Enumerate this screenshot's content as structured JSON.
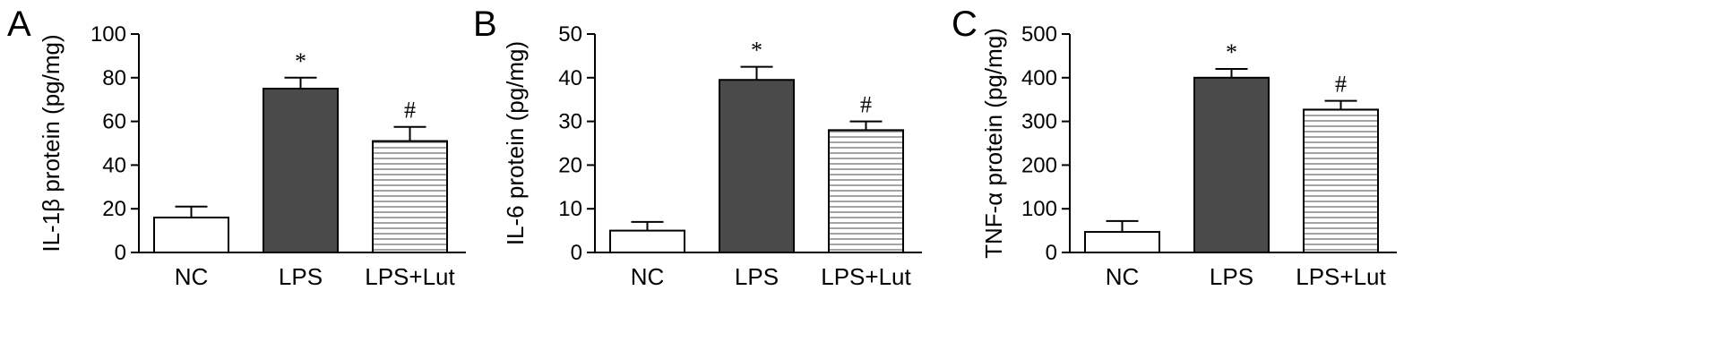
{
  "chart_data": [
    {
      "type": "bar",
      "panel": "A",
      "ylabel": "IL-1β protein (pg/mg)",
      "ylim": [
        0,
        100
      ],
      "yticks": [
        0,
        20,
        40,
        60,
        80,
        100
      ],
      "categories": [
        "NC",
        "LPS",
        "LPS+Lut"
      ],
      "values": [
        16,
        75,
        51
      ],
      "errors": [
        5,
        5,
        6.5
      ],
      "markers": [
        "",
        "*",
        "#"
      ],
      "fills": [
        "white",
        "#4a4a4a",
        "hatch"
      ],
      "grid": false
    },
    {
      "type": "bar",
      "panel": "B",
      "ylabel": "IL-6 protein (pg/mg)",
      "ylim": [
        0,
        50
      ],
      "yticks": [
        0,
        10,
        20,
        30,
        40,
        50
      ],
      "categories": [
        "NC",
        "LPS",
        "LPS+Lut"
      ],
      "values": [
        5,
        39.5,
        28
      ],
      "errors": [
        2,
        3,
        2
      ],
      "markers": [
        "",
        "*",
        "#"
      ],
      "fills": [
        "white",
        "#4a4a4a",
        "hatch"
      ],
      "grid": false
    },
    {
      "type": "bar",
      "panel": "C",
      "ylabel": "TNF-α protein (pg/mg)",
      "ylim": [
        0,
        500
      ],
      "yticks": [
        0,
        100,
        200,
        300,
        400,
        500
      ],
      "categories": [
        "NC",
        "LPS",
        "LPS+Lut"
      ],
      "values": [
        47,
        400,
        327
      ],
      "errors": [
        25,
        20,
        20
      ],
      "markers": [
        "",
        "*",
        "#"
      ],
      "fills": [
        "white",
        "#4a4a4a",
        "hatch"
      ],
      "grid": false
    }
  ]
}
